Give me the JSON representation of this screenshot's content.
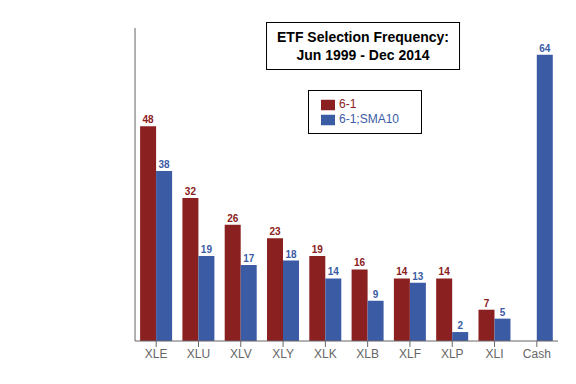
{
  "chart_data": {
    "type": "bar",
    "title": "ETF Selection Frequency:",
    "subtitle": "Jun 1999 - Dec 2014",
    "categories": [
      "XLE",
      "XLU",
      "XLV",
      "XLY",
      "XLK",
      "XLB",
      "XLF",
      "XLP",
      "XLI",
      "Cash"
    ],
    "series": [
      {
        "name": "6-1",
        "color": "#8B2020",
        "values": [
          48,
          32,
          26,
          23,
          19,
          16,
          14,
          14,
          7,
          0
        ]
      },
      {
        "name": "6-1;SMA10",
        "color": "#3B5BA5",
        "values": [
          38,
          19,
          17,
          18,
          14,
          9,
          13,
          2,
          5,
          64
        ]
      }
    ],
    "ylim": [
      0,
      70
    ],
    "tick_labels": "x",
    "data_labels": true,
    "legend": "upper center",
    "grid": false
  }
}
